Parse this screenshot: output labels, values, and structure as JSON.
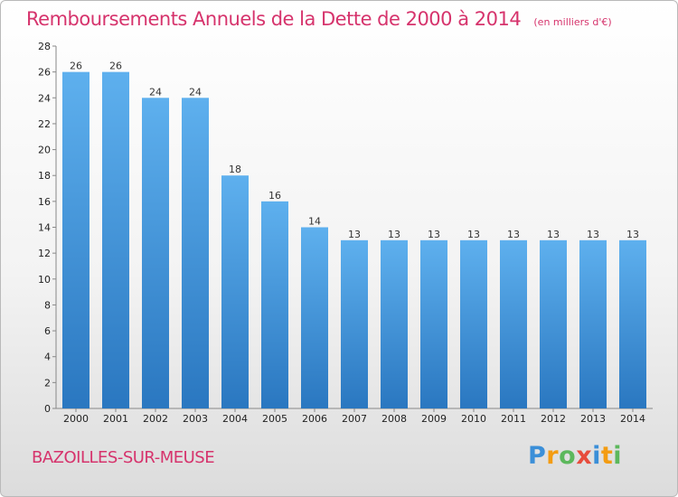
{
  "chart_data": {
    "type": "bar",
    "title": "Remboursements Annuels de la Dette de 2000 à 2014",
    "subtitle": "(en milliers d'€)",
    "categories": [
      "2000",
      "2001",
      "2002",
      "2003",
      "2004",
      "2005",
      "2006",
      "2007",
      "2008",
      "2009",
      "2010",
      "2011",
      "2012",
      "2013",
      "2014"
    ],
    "values": [
      26,
      26,
      24,
      24,
      18,
      16,
      14,
      13,
      13,
      13,
      13,
      13,
      13,
      13,
      13
    ],
    "ylim": [
      0,
      28
    ],
    "yticks": [
      0,
      2,
      4,
      6,
      8,
      10,
      12,
      14,
      16,
      18,
      20,
      22,
      24,
      26,
      28
    ],
    "xlabel": "",
    "ylabel": "",
    "grid": false,
    "bar_color": "#3d8fd6"
  },
  "commune": "BAZOILLES-SUR-MEUSE",
  "brand": {
    "letters": [
      "P",
      "r",
      "o",
      "x",
      "i",
      "t",
      "i"
    ],
    "colors": [
      "#3b8fd8",
      "#f39c12",
      "#5cb85c",
      "#e74c3c",
      "#3b8fd8",
      "#f39c12",
      "#5cb85c"
    ]
  }
}
